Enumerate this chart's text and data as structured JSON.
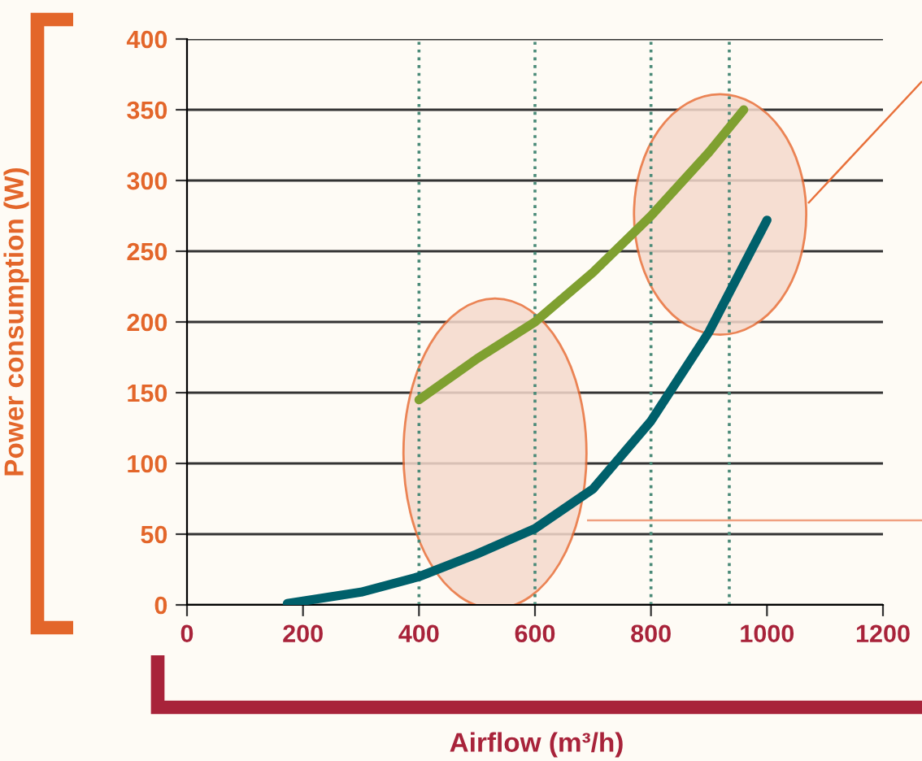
{
  "chart_data": {
    "type": "line",
    "xlabel": "Airflow (m³/h)",
    "ylabel": "Power consumption (W)",
    "xlim": [
      0,
      1200
    ],
    "xticks": [
      0,
      200,
      400,
      600,
      800,
      1000,
      1200
    ],
    "ylim": [
      0,
      400
    ],
    "yticks": [
      0,
      50,
      100,
      150,
      200,
      250,
      300,
      350,
      400
    ],
    "grid": "y",
    "marker": "none",
    "line_style": "solid",
    "series": [
      {
        "color": "#7fa030",
        "x": [
          400,
          500,
          600,
          700,
          800,
          900,
          960
        ],
        "values": [
          145,
          174,
          200,
          235,
          275,
          320,
          350
        ]
      },
      {
        "color": "#00606b",
        "x": [
          173,
          300,
          400,
          500,
          600,
          700,
          800,
          900,
          1000
        ],
        "values": [
          1,
          9,
          20,
          36,
          54,
          82,
          130,
          193,
          272
        ]
      }
    ],
    "ref_lines": [
      {
        "axis": "x",
        "value": 400,
        "color": "#4a8a78",
        "line_style": "dotted"
      },
      {
        "axis": "x",
        "value": 600,
        "color": "#4a8a78",
        "line_style": "dotted"
      },
      {
        "axis": "x",
        "value": 800,
        "color": "#4a8a78",
        "line_style": "dotted"
      },
      {
        "axis": "x",
        "value": 935,
        "color": "#4a8a78",
        "line_style": "dotted"
      }
    ]
  }
}
